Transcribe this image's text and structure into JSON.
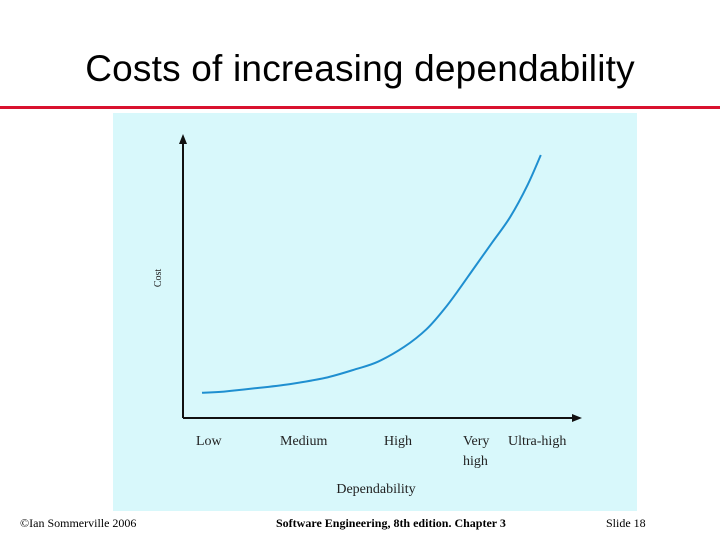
{
  "slide": {
    "title": "Costs of increasing dependability",
    "footer_left": "©Ian Sommerville 2006",
    "footer_center": "Software Engineering, 8th edition. Chapter 3",
    "footer_right": "Slide  18"
  },
  "colors": {
    "title_rule": "#d9112e",
    "panel_background": "#d8f8fb",
    "curve": "#1f8fd0",
    "axis": "#111111"
  },
  "chart_data": {
    "type": "line",
    "title": "",
    "xlabel": "Dependability",
    "ylabel": "Cost",
    "categories": [
      "Low",
      "Medium",
      "High",
      "Very high",
      "Ultra-high"
    ],
    "grid": false,
    "ylim": [
      0,
      100
    ],
    "series": [
      {
        "x": [
          0,
          0.25,
          0.6,
          1.0,
          1.4,
          1.75,
          2.0,
          2.3,
          2.55,
          2.75,
          2.9,
          3.1,
          3.3,
          3.5,
          3.7,
          3.85
        ],
        "values": [
          4.5,
          5,
          6.3,
          8,
          10.5,
          14,
          17,
          23,
          30,
          38,
          45,
          55,
          65,
          75,
          88,
          100
        ]
      }
    ]
  }
}
